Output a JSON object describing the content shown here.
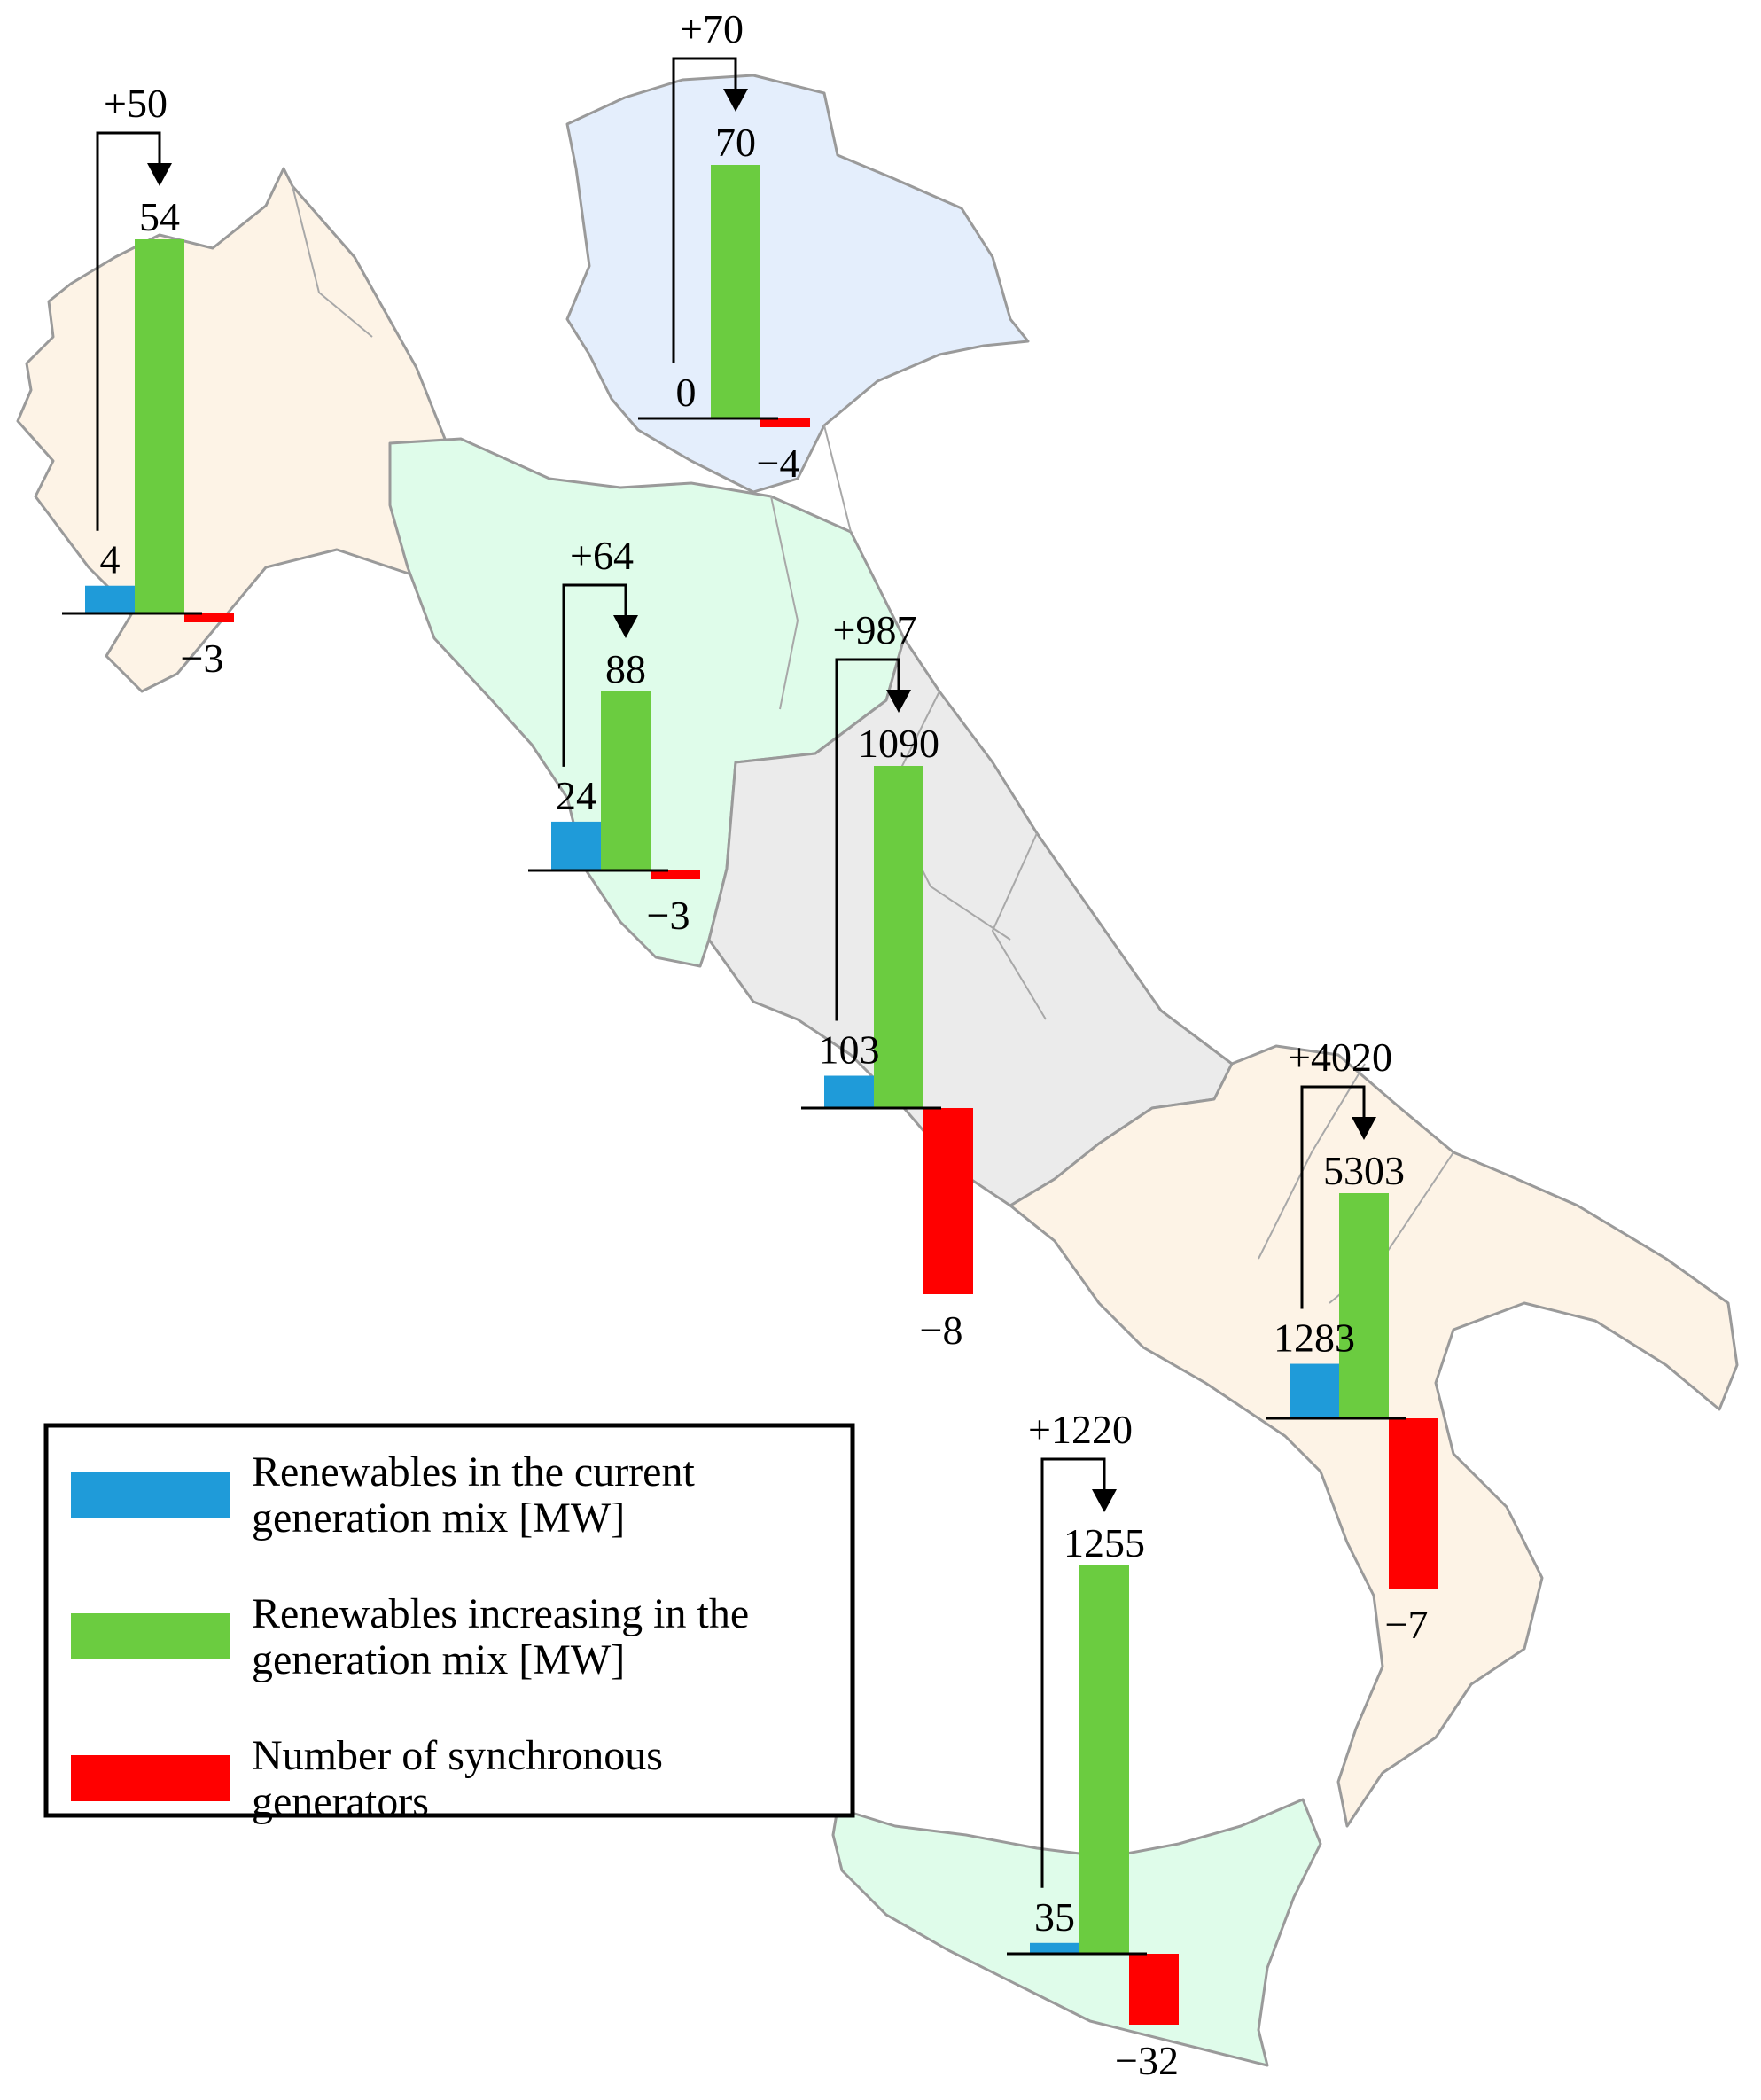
{
  "chart_data": {
    "type": "bar",
    "series": [
      {
        "key": "current",
        "name": "Renewables in the current generation mix [MW]",
        "color": "#1f9bd9"
      },
      {
        "key": "increasing",
        "name": "Renewables increasing in the generation mix [MW]",
        "color": "#6bcc40"
      },
      {
        "key": "sync",
        "name": "Number of synchronous generators",
        "color": "#ff0000"
      }
    ],
    "groups": [
      {
        "id": "north-west",
        "current": 4,
        "increasing": 54,
        "delta": 50,
        "sync": -3,
        "current_label": "4",
        "increasing_label": "54",
        "delta_label": "+50",
        "sync_label": "−3"
      },
      {
        "id": "north-east",
        "current": 0,
        "increasing": 70,
        "delta": 70,
        "sync": -4,
        "current_label": "0",
        "increasing_label": "70",
        "delta_label": "+70",
        "sync_label": "−4"
      },
      {
        "id": "centre-north",
        "current": 24,
        "increasing": 88,
        "delta": 64,
        "sync": -3,
        "current_label": "24",
        "increasing_label": "88",
        "delta_label": "+64",
        "sync_label": "−3"
      },
      {
        "id": "centre-south",
        "current": 103,
        "increasing": 1090,
        "delta": 987,
        "sync": -8,
        "current_label": "103",
        "increasing_label": "1090",
        "delta_label": "+987",
        "sync_label": "−8"
      },
      {
        "id": "south",
        "current": 1283,
        "increasing": 5303,
        "delta": 4020,
        "sync": -7,
        "current_label": "1283",
        "increasing_label": "5303",
        "delta_label": "+4020",
        "sync_label": "−7"
      },
      {
        "id": "sicily",
        "current": 35,
        "increasing": 1255,
        "delta": 1220,
        "sync": -32,
        "current_label": "35",
        "increasing_label": "1255",
        "delta_label": "+1220",
        "sync_label": "−32"
      }
    ],
    "legend": {
      "placement": "bottom-left",
      "entries": [
        {
          "series": "current",
          "lines": [
            "Renewables in the current",
            "generation mix [MW]"
          ]
        },
        {
          "series": "increasing",
          "lines": [
            "Renewables increasing in the",
            "generation mix [MW]"
          ]
        },
        {
          "series": "sync",
          "lines": [
            "Number of synchronous",
            "generators"
          ]
        }
      ]
    }
  },
  "map": {
    "regions": [
      {
        "id": "north-west",
        "color": "#fdf3e6"
      },
      {
        "id": "north-east",
        "color": "#e4eefc"
      },
      {
        "id": "centre-north",
        "color": "#dffcea"
      },
      {
        "id": "centre-south",
        "color": "#ebebeb"
      },
      {
        "id": "south",
        "color": "#fdf3e6"
      },
      {
        "id": "sicily",
        "color": "#dffcea"
      }
    ]
  }
}
